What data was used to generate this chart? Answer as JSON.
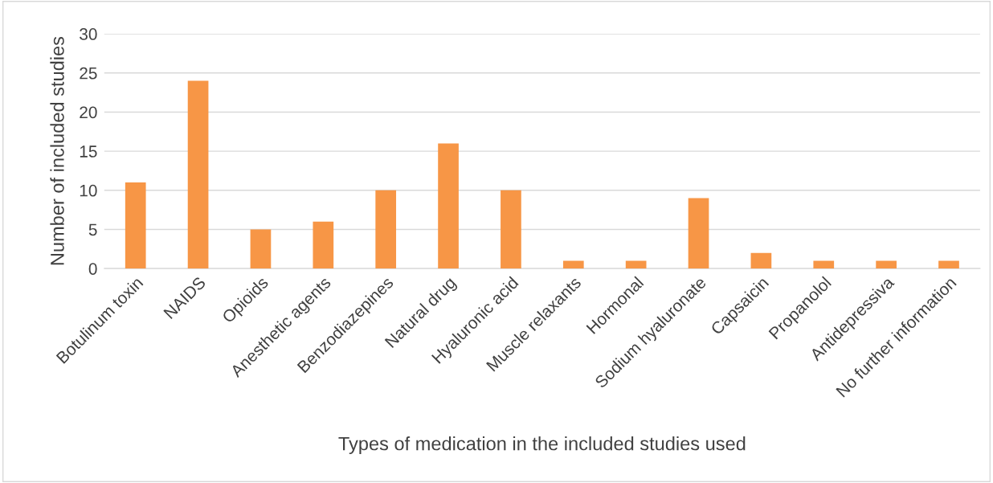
{
  "chart_data": {
    "type": "bar",
    "categories": [
      "Botulinum toxin",
      "NAIDS",
      "Opioids",
      "Anesthetic agents",
      "Benzodiazepines",
      "Natural drug",
      "Hyaluronic acid",
      "Muscle relaxants",
      "Hormonal",
      "Sodium hyaluronate",
      "Capsaicin",
      "Propanolol",
      "Antidepressiva",
      "No further information"
    ],
    "values": [
      11,
      24,
      5,
      6,
      10,
      16,
      10,
      1,
      1,
      9,
      2,
      1,
      1,
      1
    ],
    "color": "#f79646",
    "xlabel": "Types of medication in the included studies used",
    "ylabel": "Number of included studies",
    "ylim": [
      0,
      30
    ],
    "yticks": [
      0,
      5,
      10,
      15,
      20,
      25,
      30
    ],
    "grid": "y",
    "legend": false
  }
}
